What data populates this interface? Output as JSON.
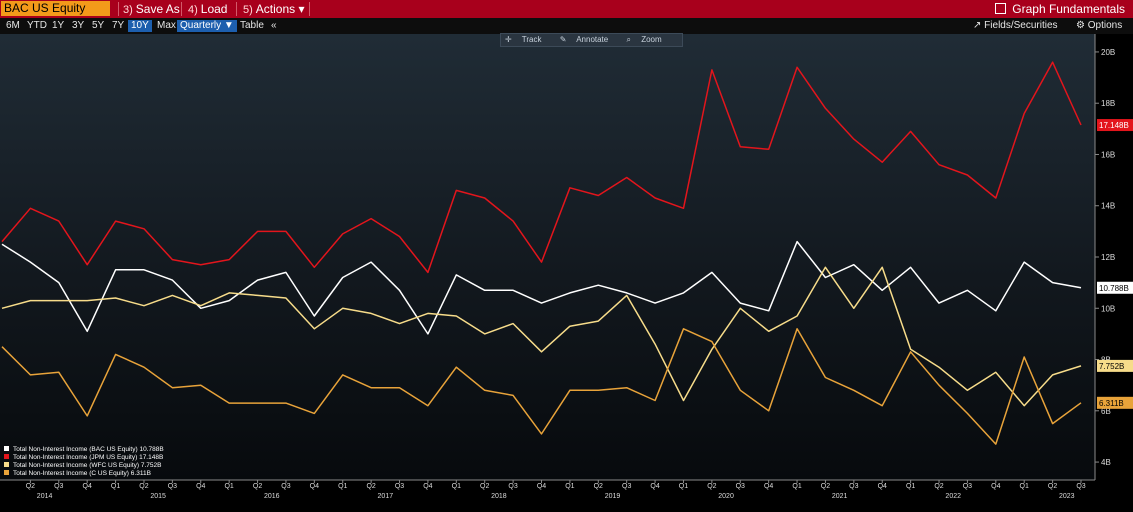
{
  "toolbar": {
    "ticker": "BAC US Equity",
    "save_as": "Save As",
    "load": "Load",
    "actions": "Actions ▾",
    "actions_num": "5)",
    "load_num": "4)",
    "save_num": "3)",
    "graph_fundamentals": "Graph Fundamentals"
  },
  "rangebar": {
    "ranges": [
      "6M",
      "YTD",
      "1Y",
      "3Y",
      "5Y",
      "7Y",
      "10Y",
      "Max"
    ],
    "active_range": "10Y",
    "period": "Quarterly ▼",
    "table": "Table",
    "collapse": "«",
    "fields": "Fields/Securities",
    "options": "Options"
  },
  "chart_tools": {
    "track": "Track",
    "annotate": "Annotate",
    "zoom": "Zoom"
  },
  "colors": {
    "bac": "#ffffff",
    "jpm": "#e3151c",
    "wfc": "#f7dc8a",
    "c": "#e8a33a",
    "bar": "#a8001c",
    "ticker": "#f39a1a"
  },
  "chart_data": {
    "type": "line",
    "x": [
      "Q1 2014",
      "Q2 2014",
      "Q3 2014",
      "Q4 2014",
      "Q1 2015",
      "Q2 2015",
      "Q3 2015",
      "Q4 2015",
      "Q1 2016",
      "Q2 2016",
      "Q3 2016",
      "Q4 2016",
      "Q1 2017",
      "Q2 2017",
      "Q3 2017",
      "Q4 2017",
      "Q1 2018",
      "Q2 2018",
      "Q3 2018",
      "Q4 2018",
      "Q1 2019",
      "Q2 2019",
      "Q3 2019",
      "Q4 2019",
      "Q1 2020",
      "Q2 2020",
      "Q3 2020",
      "Q4 2020",
      "Q1 2021",
      "Q2 2021",
      "Q3 2021",
      "Q4 2021",
      "Q1 2022",
      "Q2 2022",
      "Q3 2022",
      "Q4 2022",
      "Q1 2023",
      "Q2 2023",
      "Q3 2023"
    ],
    "x_ticks": [
      "Q2",
      "Q3",
      "Q4",
      "Q1",
      "Q2",
      "Q3",
      "Q4",
      "Q1",
      "Q2",
      "Q3",
      "Q4",
      "Q1",
      "Q2",
      "Q3",
      "Q4",
      "Q1",
      "Q2",
      "Q3",
      "Q4",
      "Q1",
      "Q2",
      "Q3",
      "Q4",
      "Q1",
      "Q2",
      "Q3",
      "Q4",
      "Q1",
      "Q2",
      "Q3",
      "Q4",
      "Q1",
      "Q2",
      "Q3",
      "Q4",
      "Q1",
      "Q2",
      "Q3"
    ],
    "x_years": [
      "2014",
      "2015",
      "2016",
      "2017",
      "2018",
      "2019",
      "2020",
      "2021",
      "2022",
      "2023"
    ],
    "y_ticks": [
      "4B",
      "6B",
      "8B",
      "10B",
      "12B",
      "14B",
      "16B",
      "18B",
      "20B"
    ],
    "ylim": [
      3.3,
      20.7
    ],
    "unit": "B",
    "series": [
      {
        "name": "Total Non-Interest Income (BAC US Equity)",
        "key": "bac",
        "last_label": "10.788B",
        "values": [
          12.5,
          11.8,
          11.0,
          9.1,
          11.5,
          11.5,
          11.1,
          10.0,
          10.3,
          11.1,
          11.4,
          9.7,
          11.2,
          11.8,
          10.7,
          9.0,
          11.3,
          10.7,
          10.7,
          10.2,
          10.6,
          10.9,
          10.6,
          10.2,
          10.6,
          11.4,
          10.2,
          9.9,
          12.6,
          11.2,
          11.7,
          10.7,
          11.6,
          10.2,
          10.7,
          9.9,
          11.8,
          11.0,
          10.8
        ]
      },
      {
        "name": "Total Non-Interest Income (JPM US Equity)",
        "key": "jpm",
        "last_label": "17.148B",
        "values": [
          12.6,
          13.9,
          13.4,
          11.7,
          13.4,
          13.1,
          11.9,
          11.7,
          11.9,
          13.0,
          13.0,
          11.6,
          12.9,
          13.5,
          12.8,
          11.4,
          14.6,
          14.3,
          13.4,
          11.8,
          14.7,
          14.4,
          15.1,
          14.3,
          13.9,
          19.3,
          16.3,
          16.2,
          19.4,
          17.8,
          16.6,
          15.7,
          16.9,
          15.6,
          15.2,
          14.3,
          17.6,
          19.6,
          17.148
        ]
      },
      {
        "name": "Total Non-Interest Income (WFC US Equity)",
        "key": "wfc",
        "last_label": "7.752B",
        "values": [
          10.0,
          10.3,
          10.3,
          10.3,
          10.4,
          10.1,
          10.5,
          10.1,
          10.6,
          10.5,
          10.4,
          9.2,
          10.0,
          9.8,
          9.4,
          9.8,
          9.7,
          9.0,
          9.4,
          8.3,
          9.3,
          9.5,
          10.5,
          8.6,
          6.4,
          8.4,
          10.0,
          9.1,
          9.7,
          11.6,
          10.0,
          11.6,
          8.4,
          7.7,
          6.8,
          7.5,
          6.2,
          7.4,
          7.752
        ]
      },
      {
        "name": "Total Non-Interest Income (C US Equity)",
        "key": "c",
        "last_label": "6.311B",
        "values": [
          8.5,
          7.4,
          7.5,
          5.8,
          8.2,
          7.7,
          6.9,
          7.0,
          6.3,
          6.3,
          6.3,
          5.9,
          7.4,
          6.9,
          6.9,
          6.2,
          7.7,
          6.8,
          6.6,
          5.1,
          6.8,
          6.8,
          6.9,
          6.4,
          9.2,
          8.7,
          6.8,
          6.0,
          9.2,
          7.3,
          6.8,
          6.2,
          8.3,
          7.0,
          5.9,
          4.7,
          8.1,
          5.5,
          6.311
        ]
      }
    ],
    "legend_values": [
      "10.788B",
      "17.148B",
      "7.752B",
      "6.311B"
    ]
  }
}
